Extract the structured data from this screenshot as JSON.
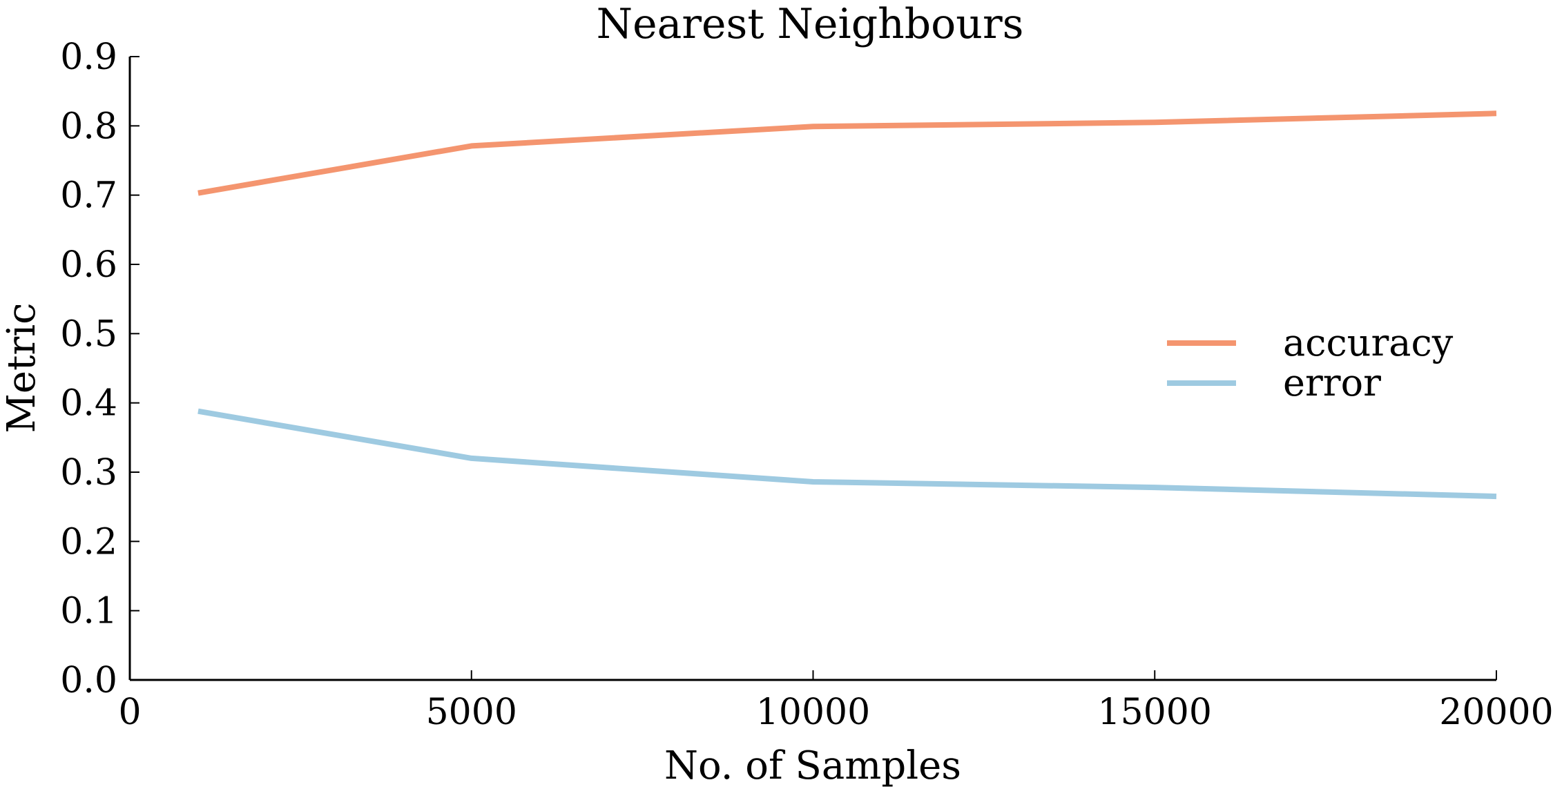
{
  "chart_data": {
    "type": "line",
    "title": "Nearest Neighbours",
    "xlabel": "No. of Samples",
    "ylabel": "Metric",
    "xlim": [
      0,
      20000
    ],
    "ylim": [
      0.0,
      0.9
    ],
    "xticks": [
      0,
      5000,
      10000,
      15000,
      20000
    ],
    "xtick_labels": [
      "0",
      "5000",
      "10000",
      "15000",
      "20000"
    ],
    "yticks": [
      0.0,
      0.1,
      0.2,
      0.3,
      0.4,
      0.5,
      0.6,
      0.7,
      0.8,
      0.9
    ],
    "ytick_labels": [
      "0.0",
      "0.1",
      "0.2",
      "0.3",
      "0.4",
      "0.5",
      "0.6",
      "0.7",
      "0.8",
      "0.9"
    ],
    "grid": false,
    "legend_position": "center-right",
    "x": [
      1000,
      5000,
      10000,
      15000,
      20000
    ],
    "series": [
      {
        "name": "accuracy",
        "color": "#f4956f",
        "values": [
          0.703,
          0.771,
          0.799,
          0.805,
          0.818
        ]
      },
      {
        "name": "error",
        "color": "#9ecae1",
        "values": [
          0.388,
          0.32,
          0.286,
          0.278,
          0.265
        ]
      }
    ]
  }
}
